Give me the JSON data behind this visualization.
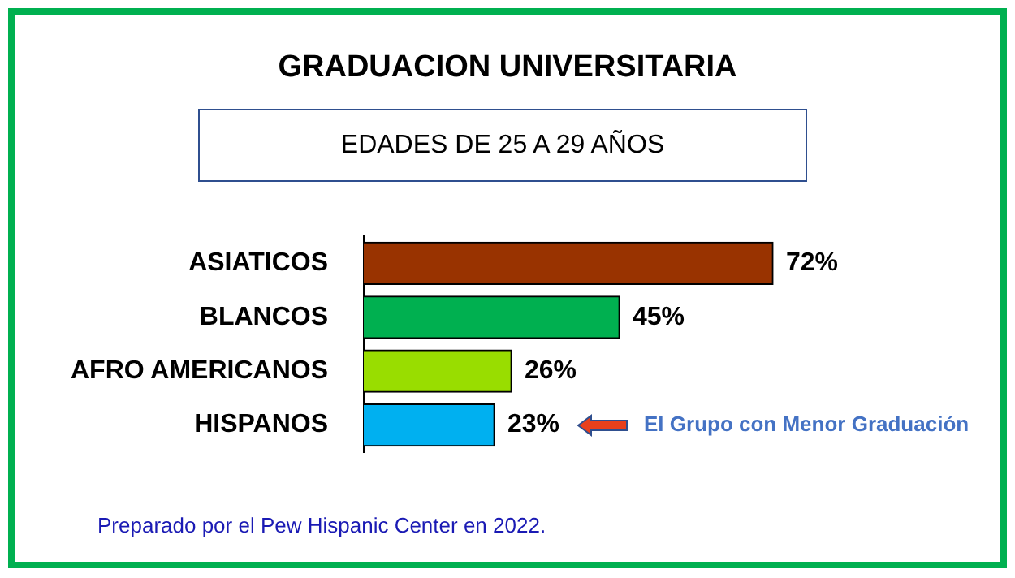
{
  "chart_data": {
    "type": "bar",
    "orientation": "horizontal",
    "title": "GRADUACION UNIVERSITARIA",
    "subtitle": "EDADES DE 25 A 29 AÑOS",
    "categories": [
      "ASIATICOS",
      "BLANCOS",
      "AFRO AMERICANOS",
      "HISPANOS"
    ],
    "values": [
      72,
      45,
      26,
      23
    ],
    "colors": [
      "#993300",
      "#00b050",
      "#99dd00",
      "#00b0f0"
    ],
    "tick_labels": "y",
    "value_labels": [
      "72%",
      "45%",
      "26%",
      "23%"
    ],
    "annotations": [
      "El Grupo con Menor Graduación",
      "Preparado por el Pew Hispanic Center en 2022."
    ]
  }
}
